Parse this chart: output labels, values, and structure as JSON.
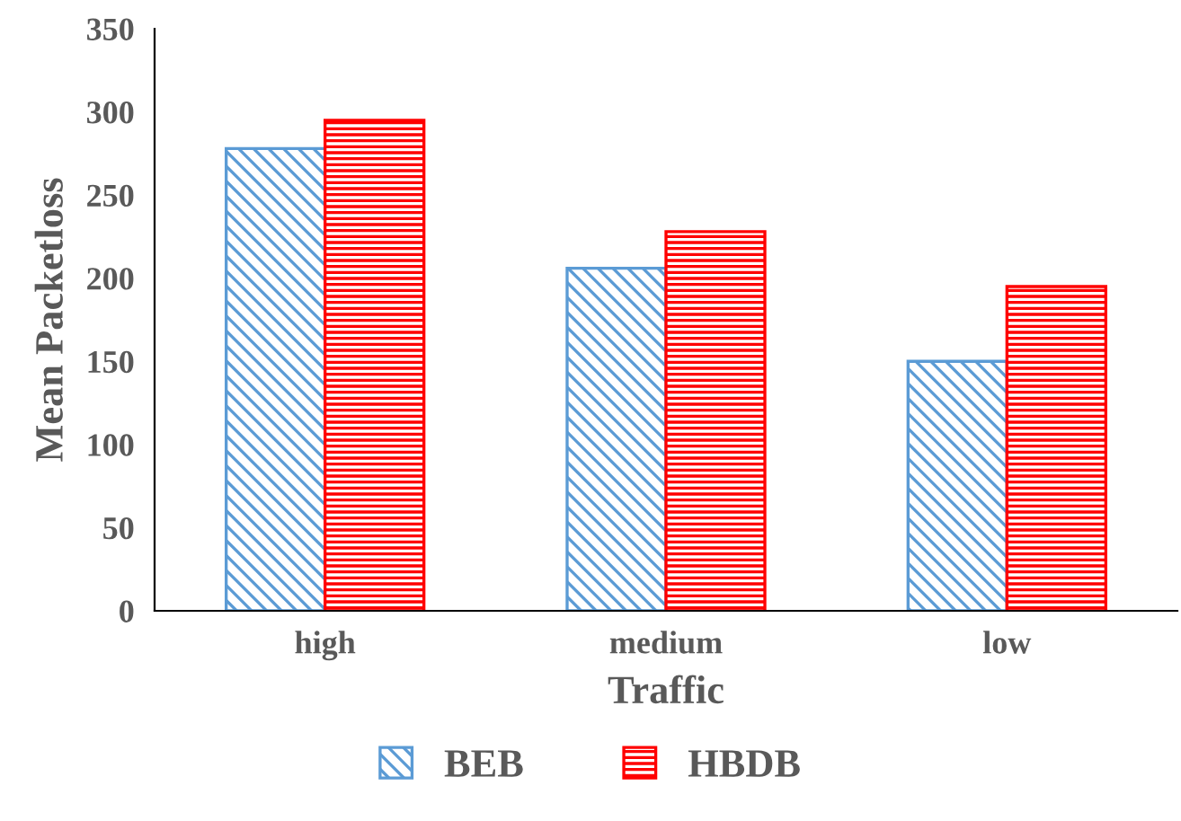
{
  "chart_data": {
    "type": "bar",
    "xlabel": "Traffic",
    "ylabel": "Mean Packetloss",
    "categories": [
      "high",
      "medium",
      "low"
    ],
    "series": [
      {
        "name": "BEB",
        "color": "#5b9bd5",
        "values": [
          278,
          206,
          150
        ]
      },
      {
        "name": "HBDB",
        "color": "#ff0000",
        "values": [
          295,
          228,
          195
        ]
      }
    ],
    "ylim": [
      0,
      350
    ],
    "yticks": [
      0,
      50,
      100,
      150,
      200,
      250,
      300,
      350
    ],
    "grid": false,
    "legend": "bottom"
  }
}
